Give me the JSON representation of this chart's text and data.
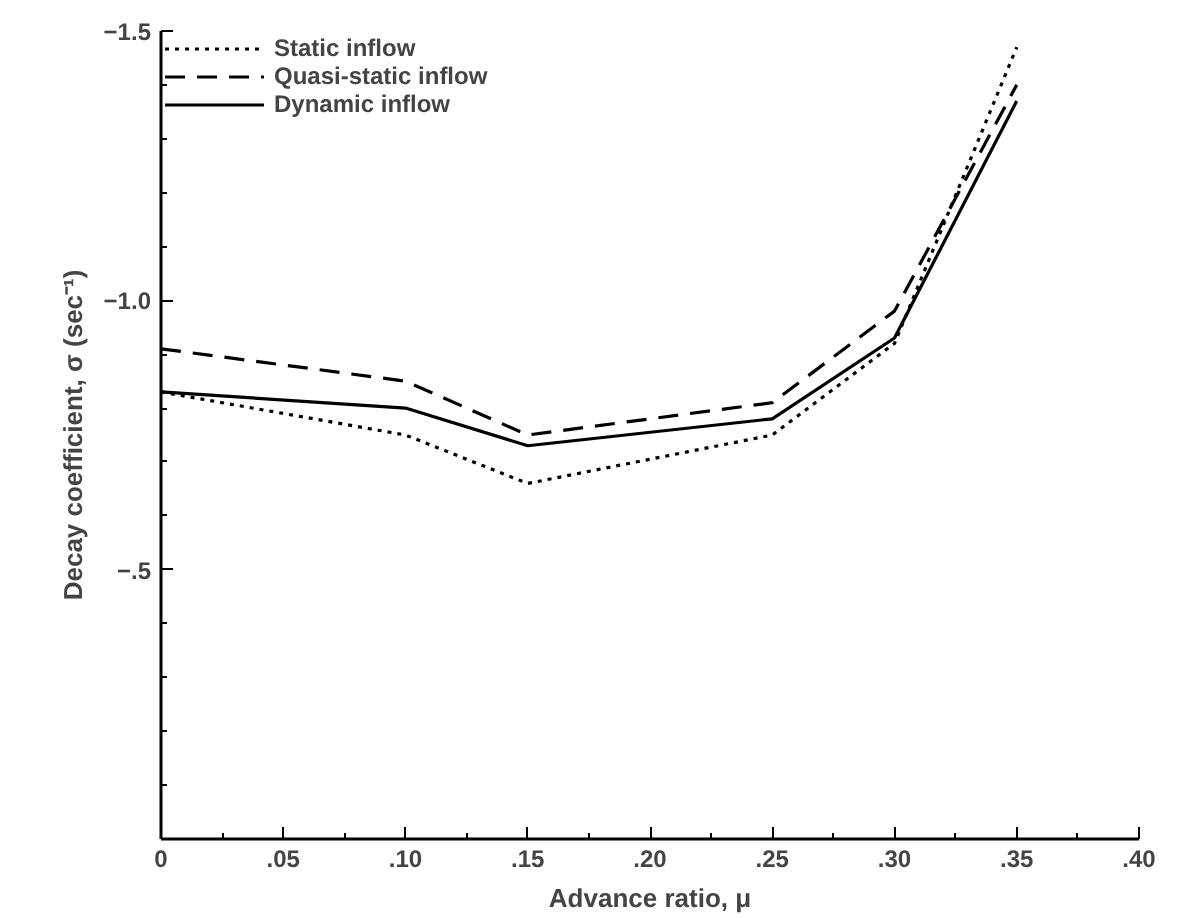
{
  "chart_data": {
    "type": "line",
    "xlabel": "Advance ratio, μ",
    "ylabel": "Decay coefficient, σ (sec⁻¹)",
    "x": [
      0,
      0.1,
      0.15,
      0.25,
      0.3,
      0.35
    ],
    "series": [
      {
        "name": "Static inflow",
        "color": "#000000",
        "line_style": "dotted",
        "values": [
          -0.83,
          -0.75,
          -0.66,
          -0.75,
          -0.92,
          -1.47
        ]
      },
      {
        "name": "Quasi-static inflow",
        "color": "#000000",
        "line_style": "dashed",
        "values": [
          -0.91,
          -0.85,
          -0.75,
          -0.81,
          -0.98,
          -1.4
        ]
      },
      {
        "name": "Dynamic inflow",
        "color": "#000000",
        "line_style": "solid",
        "values": [
          -0.83,
          -0.8,
          -0.73,
          -0.78,
          -0.93,
          -1.37
        ]
      }
    ],
    "xlim": [
      0,
      0.4
    ],
    "xticks": [
      0,
      {
        "value": 0.05,
        "label": ".05"
      },
      {
        "value": 0.1,
        "label": ".10"
      },
      {
        "value": 0.15,
        "label": ".15"
      },
      {
        "value": 0.2,
        "label": ".20"
      },
      {
        "value": 0.25,
        "label": ".25"
      },
      {
        "value": 0.3,
        "label": ".30"
      },
      {
        "value": 0.35,
        "label": ".35"
      },
      {
        "value": 0.4,
        "label": ".40"
      }
    ],
    "ylim": [
      0,
      -1.5
    ],
    "yticks": [
      {
        "value": -0.5,
        "label": "−.5"
      },
      {
        "value": -1.0,
        "label": "−1.0"
      },
      {
        "value": -1.5,
        "label": "−1.5"
      }
    ],
    "grid": false,
    "legend": "top left",
    "marker": "none"
  }
}
